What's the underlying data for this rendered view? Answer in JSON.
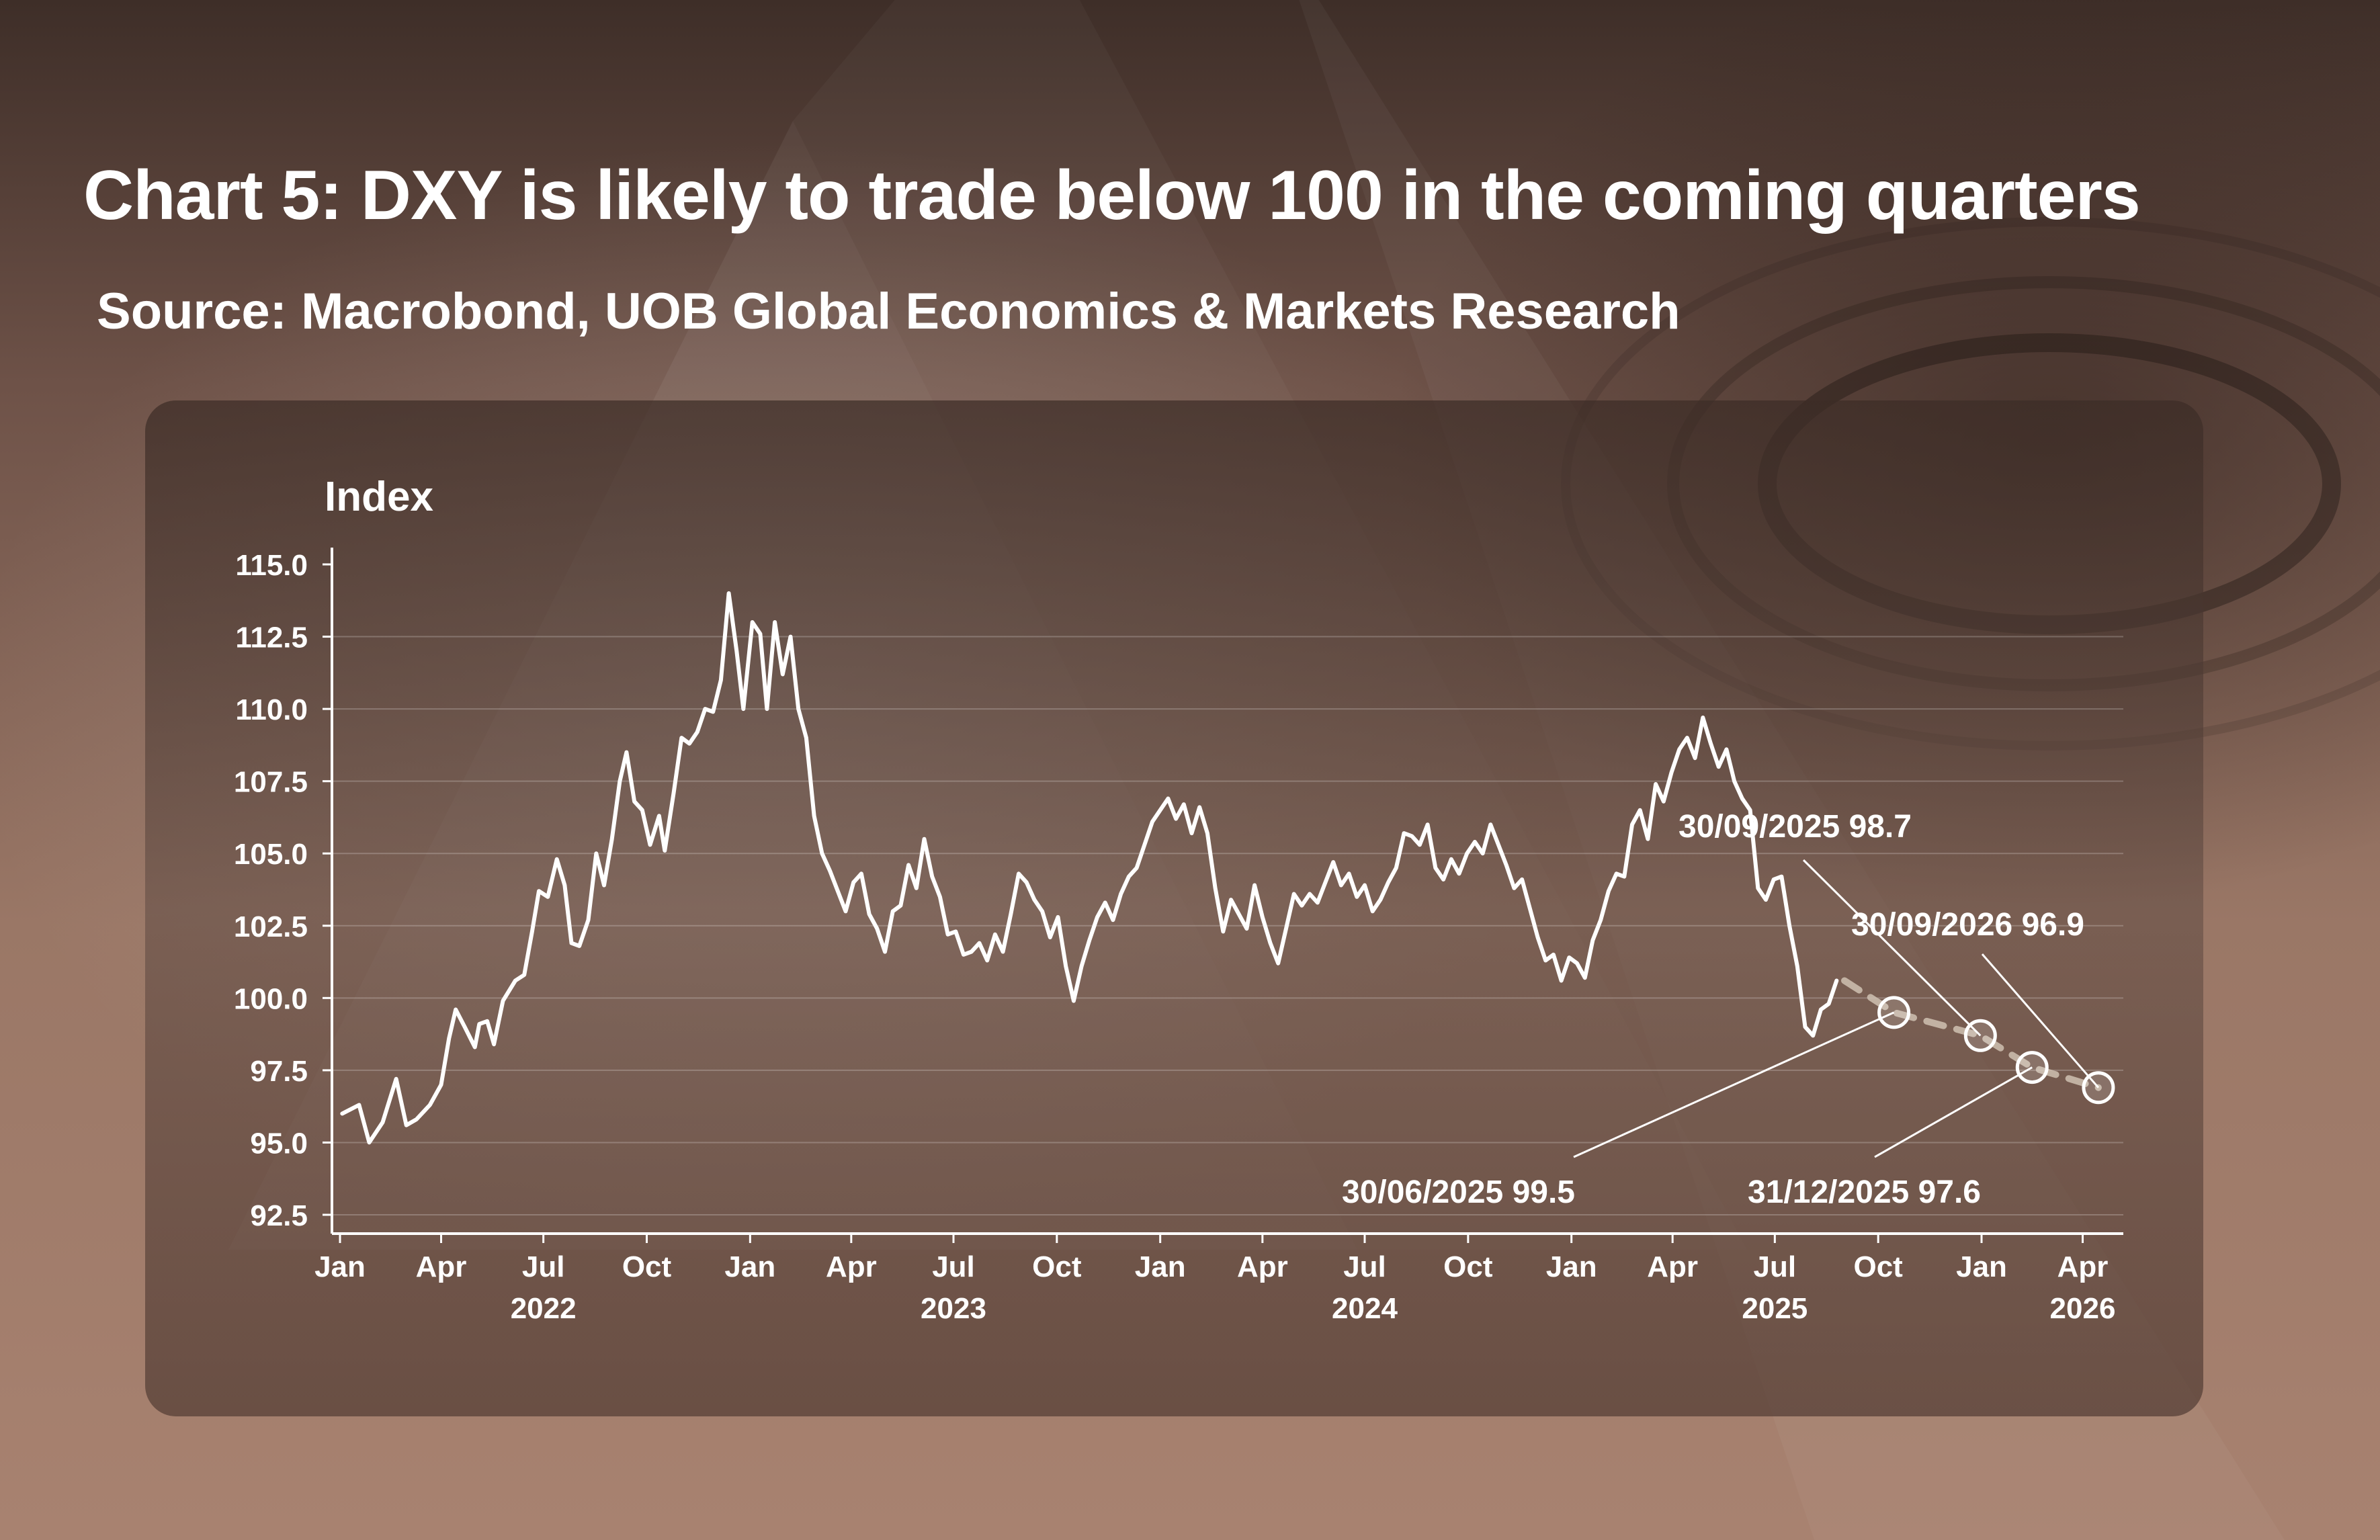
{
  "header": {
    "title": "Chart 5: DXY is likely to trade below 100 in the coming quarters",
    "source": "Source: Macrobond, UOB Global Economics & Markets Research"
  },
  "chart_data": {
    "type": "line",
    "ylabel": "Index",
    "ylim": [
      92.5,
      115.0
    ],
    "yticks": [
      "115.0",
      "112.5",
      "110.0",
      "107.5",
      "105.0",
      "102.5",
      "100.0",
      "97.5",
      "95.0",
      "92.5"
    ],
    "grid": true,
    "x_range": [
      "2022-01-01",
      "2026-04-30"
    ],
    "x_month_ticks": [
      {
        "label": "Jan",
        "date": "2022-01-01"
      },
      {
        "label": "Apr",
        "date": "2022-04-01"
      },
      {
        "label": "Jul",
        "date": "2022-07-01"
      },
      {
        "label": "Oct",
        "date": "2022-10-01"
      },
      {
        "label": "Jan",
        "date": "2023-01-01"
      },
      {
        "label": "Apr",
        "date": "2023-04-01"
      },
      {
        "label": "Jul",
        "date": "2023-07-01"
      },
      {
        "label": "Oct",
        "date": "2023-10-01"
      },
      {
        "label": "Jan",
        "date": "2024-01-01"
      },
      {
        "label": "Apr",
        "date": "2024-04-01"
      },
      {
        "label": "Jul",
        "date": "2024-07-01"
      },
      {
        "label": "Oct",
        "date": "2024-10-01"
      },
      {
        "label": "Jan",
        "date": "2025-01-01"
      },
      {
        "label": "Apr",
        "date": "2025-04-01"
      },
      {
        "label": "Jul",
        "date": "2025-07-01"
      },
      {
        "label": "Oct",
        "date": "2025-10-01"
      },
      {
        "label": "Jan",
        "date": "2026-01-01"
      },
      {
        "label": "Apr",
        "date": "2026-04-01"
      }
    ],
    "x_year_labels": [
      {
        "label": "2022",
        "date": "2022-07-01"
      },
      {
        "label": "2023",
        "date": "2023-07-01"
      },
      {
        "label": "2024",
        "date": "2024-07-01"
      },
      {
        "label": "2025",
        "date": "2025-07-01"
      },
      {
        "label": "2026",
        "date": "2026-04-01"
      }
    ],
    "series": [
      {
        "style": "solid",
        "color": "#ffffff",
        "points": [
          [
            "2022-01-03",
            96.0
          ],
          [
            "2022-01-18",
            96.3
          ],
          [
            "2022-01-27",
            95.0
          ],
          [
            "2022-02-08",
            95.7
          ],
          [
            "2022-02-20",
            97.2
          ],
          [
            "2022-03-01",
            95.6
          ],
          [
            "2022-03-10",
            95.8
          ],
          [
            "2022-03-22",
            96.3
          ],
          [
            "2022-04-01",
            97.0
          ],
          [
            "2022-04-08",
            98.6
          ],
          [
            "2022-04-14",
            99.6
          ],
          [
            "2022-04-22",
            99.0
          ],
          [
            "2022-05-01",
            98.3
          ],
          [
            "2022-05-05",
            99.1
          ],
          [
            "2022-05-12",
            99.2
          ],
          [
            "2022-05-18",
            98.4
          ],
          [
            "2022-05-26",
            99.9
          ],
          [
            "2022-06-06",
            100.6
          ],
          [
            "2022-06-14",
            100.8
          ],
          [
            "2022-06-21",
            102.3
          ],
          [
            "2022-06-27",
            103.7
          ],
          [
            "2022-07-05",
            103.5
          ],
          [
            "2022-07-13",
            104.8
          ],
          [
            "2022-07-20",
            103.9
          ],
          [
            "2022-07-26",
            101.9
          ],
          [
            "2022-08-02",
            101.8
          ],
          [
            "2022-08-10",
            102.7
          ],
          [
            "2022-08-17",
            105.0
          ],
          [
            "2022-08-24",
            103.9
          ],
          [
            "2022-08-31",
            105.5
          ],
          [
            "2022-09-07",
            107.5
          ],
          [
            "2022-09-13",
            108.5
          ],
          [
            "2022-09-20",
            106.8
          ],
          [
            "2022-09-27",
            106.5
          ],
          [
            "2022-10-04",
            105.3
          ],
          [
            "2022-10-12",
            106.3
          ],
          [
            "2022-10-17",
            105.1
          ],
          [
            "2022-10-25",
            107.1
          ],
          [
            "2022-11-01",
            109.0
          ],
          [
            "2022-11-08",
            108.8
          ],
          [
            "2022-11-15",
            109.2
          ],
          [
            "2022-11-22",
            110.0
          ],
          [
            "2022-11-29",
            109.9
          ],
          [
            "2022-12-06",
            111.0
          ],
          [
            "2022-12-13",
            114.0
          ],
          [
            "2022-12-20",
            112.0
          ],
          [
            "2022-12-26",
            110.0
          ],
          [
            "2023-01-03",
            113.0
          ],
          [
            "2023-01-10",
            112.6
          ],
          [
            "2023-01-16",
            110.0
          ],
          [
            "2023-01-23",
            113.0
          ],
          [
            "2023-01-30",
            111.2
          ],
          [
            "2023-02-06",
            112.5
          ],
          [
            "2023-02-13",
            110.0
          ],
          [
            "2023-02-20",
            109.0
          ],
          [
            "2023-02-27",
            106.3
          ],
          [
            "2023-03-06",
            105.0
          ],
          [
            "2023-03-13",
            104.4
          ],
          [
            "2023-03-20",
            103.7
          ],
          [
            "2023-03-27",
            103.0
          ],
          [
            "2023-04-03",
            104.0
          ],
          [
            "2023-04-10",
            104.3
          ],
          [
            "2023-04-17",
            102.9
          ],
          [
            "2023-04-24",
            102.4
          ],
          [
            "2023-05-01",
            101.6
          ],
          [
            "2023-05-08",
            103.0
          ],
          [
            "2023-05-15",
            103.2
          ],
          [
            "2023-05-22",
            104.6
          ],
          [
            "2023-05-29",
            103.8
          ],
          [
            "2023-06-05",
            105.5
          ],
          [
            "2023-06-12",
            104.2
          ],
          [
            "2023-06-19",
            103.5
          ],
          [
            "2023-06-26",
            102.2
          ],
          [
            "2023-07-03",
            102.3
          ],
          [
            "2023-07-10",
            101.5
          ],
          [
            "2023-07-17",
            101.6
          ],
          [
            "2023-07-24",
            101.9
          ],
          [
            "2023-07-31",
            101.3
          ],
          [
            "2023-08-07",
            102.2
          ],
          [
            "2023-08-14",
            101.6
          ],
          [
            "2023-08-21",
            102.9
          ],
          [
            "2023-08-28",
            104.3
          ],
          [
            "2023-09-04",
            104.0
          ],
          [
            "2023-09-11",
            103.4
          ],
          [
            "2023-09-18",
            103.0
          ],
          [
            "2023-09-25",
            102.1
          ],
          [
            "2023-10-02",
            102.8
          ],
          [
            "2023-10-09",
            101.1
          ],
          [
            "2023-10-16",
            99.9
          ],
          [
            "2023-10-23",
            101.1
          ],
          [
            "2023-10-30",
            102.0
          ],
          [
            "2023-11-06",
            102.8
          ],
          [
            "2023-11-13",
            103.3
          ],
          [
            "2023-11-20",
            102.7
          ],
          [
            "2023-11-27",
            103.6
          ],
          [
            "2023-12-04",
            104.2
          ],
          [
            "2023-12-11",
            104.5
          ],
          [
            "2023-12-18",
            105.3
          ],
          [
            "2023-12-25",
            106.1
          ],
          [
            "2024-01-01",
            106.5
          ],
          [
            "2024-01-08",
            106.9
          ],
          [
            "2024-01-15",
            106.2
          ],
          [
            "2024-01-22",
            106.7
          ],
          [
            "2024-01-29",
            105.7
          ],
          [
            "2024-02-05",
            106.6
          ],
          [
            "2024-02-12",
            105.7
          ],
          [
            "2024-02-19",
            103.8
          ],
          [
            "2024-02-26",
            102.3
          ],
          [
            "2024-03-04",
            103.4
          ],
          [
            "2024-03-11",
            102.9
          ],
          [
            "2024-03-18",
            102.4
          ],
          [
            "2024-03-25",
            103.9
          ],
          [
            "2024-04-01",
            102.8
          ],
          [
            "2024-04-08",
            101.9
          ],
          [
            "2024-04-15",
            101.2
          ],
          [
            "2024-04-22",
            102.4
          ],
          [
            "2024-04-29",
            103.6
          ],
          [
            "2024-05-06",
            103.2
          ],
          [
            "2024-05-13",
            103.6
          ],
          [
            "2024-05-20",
            103.3
          ],
          [
            "2024-05-27",
            104.0
          ],
          [
            "2024-06-03",
            104.7
          ],
          [
            "2024-06-10",
            103.9
          ],
          [
            "2024-06-17",
            104.3
          ],
          [
            "2024-06-24",
            103.5
          ],
          [
            "2024-07-01",
            103.9
          ],
          [
            "2024-07-08",
            103.0
          ],
          [
            "2024-07-15",
            103.4
          ],
          [
            "2024-07-22",
            104.0
          ],
          [
            "2024-07-29",
            104.5
          ],
          [
            "2024-08-05",
            105.7
          ],
          [
            "2024-08-12",
            105.6
          ],
          [
            "2024-08-19",
            105.3
          ],
          [
            "2024-08-26",
            106.0
          ],
          [
            "2024-09-02",
            104.5
          ],
          [
            "2024-09-09",
            104.1
          ],
          [
            "2024-09-16",
            104.8
          ],
          [
            "2024-09-23",
            104.3
          ],
          [
            "2024-09-30",
            105.0
          ],
          [
            "2024-10-07",
            105.4
          ],
          [
            "2024-10-14",
            105.0
          ],
          [
            "2024-10-21",
            106.0
          ],
          [
            "2024-10-28",
            105.3
          ],
          [
            "2024-11-04",
            104.6
          ],
          [
            "2024-11-11",
            103.8
          ],
          [
            "2024-11-18",
            104.1
          ],
          [
            "2024-11-25",
            103.1
          ],
          [
            "2024-12-02",
            102.1
          ],
          [
            "2024-12-09",
            101.3
          ],
          [
            "2024-12-16",
            101.5
          ],
          [
            "2024-12-23",
            100.6
          ],
          [
            "2024-12-30",
            101.4
          ],
          [
            "2025-01-06",
            101.2
          ],
          [
            "2025-01-13",
            100.7
          ],
          [
            "2025-01-20",
            102.0
          ],
          [
            "2025-01-27",
            102.7
          ],
          [
            "2025-02-03",
            103.7
          ],
          [
            "2025-02-10",
            104.3
          ],
          [
            "2025-02-17",
            104.2
          ],
          [
            "2025-02-24",
            106.0
          ],
          [
            "2025-03-03",
            106.5
          ],
          [
            "2025-03-10",
            105.5
          ],
          [
            "2025-03-17",
            107.4
          ],
          [
            "2025-03-24",
            106.8
          ],
          [
            "2025-03-31",
            107.8
          ],
          [
            "2025-04-07",
            108.6
          ],
          [
            "2025-04-14",
            109.0
          ],
          [
            "2025-04-21",
            108.3
          ],
          [
            "2025-04-28",
            109.7
          ],
          [
            "2025-05-05",
            108.8
          ],
          [
            "2025-05-12",
            108.0
          ],
          [
            "2025-05-19",
            108.6
          ],
          [
            "2025-05-26",
            107.5
          ],
          [
            "2025-06-02",
            106.9
          ],
          [
            "2025-06-09",
            106.5
          ],
          [
            "2025-06-16",
            103.8
          ],
          [
            "2025-06-23",
            103.4
          ],
          [
            "2025-06-30",
            104.1
          ],
          [
            "2025-07-07",
            104.2
          ],
          [
            "2025-07-14",
            102.5
          ],
          [
            "2025-07-21",
            101.1
          ],
          [
            "2025-07-28",
            99.0
          ],
          [
            "2025-08-04",
            98.7
          ],
          [
            "2025-08-11",
            99.6
          ],
          [
            "2025-08-18",
            99.8
          ],
          [
            "2025-08-25",
            100.6
          ]
        ]
      },
      {
        "style": "dashed",
        "color": "#cfc1b2",
        "points": [
          [
            "2025-09-01",
            100.6
          ],
          [
            "2025-10-15",
            99.5
          ],
          [
            "2025-12-31",
            98.7
          ],
          [
            "2026-02-15",
            97.6
          ],
          [
            "2026-04-15",
            96.9
          ]
        ]
      }
    ],
    "annotations": [
      {
        "text": "30/06/2025 99.5",
        "x": "2025-10-15",
        "y": 99.5
      },
      {
        "text": "30/09/2025 98.7",
        "x": "2025-12-31",
        "y": 98.7
      },
      {
        "text": "31/12/2025 97.6",
        "x": "2026-02-15",
        "y": 97.6
      },
      {
        "text": "30/09/2026 96.9",
        "x": "2026-04-15",
        "y": 96.9
      }
    ]
  }
}
